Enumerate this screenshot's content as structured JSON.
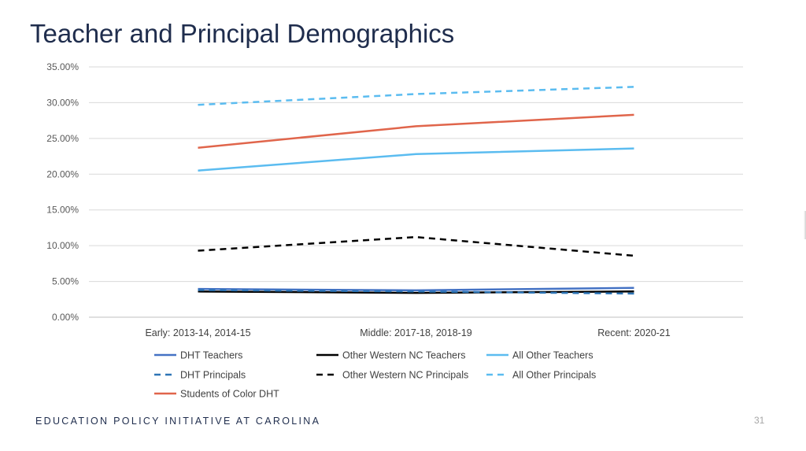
{
  "slide": {
    "title": "Teacher and Principal Demographics",
    "footer": "EDUCATION POLICY INITIATIVE AT CAROLINA",
    "page_number": "31"
  },
  "chart_data": {
    "type": "line",
    "title": "",
    "xlabel": "",
    "ylabel": "",
    "categories": [
      "Early: 2013-14, 2014-15",
      "Middle: 2017-18, 2018-19",
      "Recent: 2020-21"
    ],
    "ylim": [
      0,
      0.35
    ],
    "yticks": [
      0,
      0.05,
      0.1,
      0.15,
      0.2,
      0.25,
      0.3,
      0.35
    ],
    "ytick_labels": [
      "0.00%",
      "5.00%",
      "10.00%",
      "15.00%",
      "20.00%",
      "25.00%",
      "30.00%",
      "35.00%"
    ],
    "grid": true,
    "legend_position": "bottom",
    "series": [
      {
        "name": "DHT Teachers",
        "values": [
          0.0395,
          0.0375,
          0.041
        ],
        "color": "#4472c4",
        "dash": "solid"
      },
      {
        "name": "Other Western NC Teachers",
        "values": [
          0.036,
          0.034,
          0.036
        ],
        "color": "#000000",
        "dash": "solid"
      },
      {
        "name": "All Other Teachers",
        "values": [
          0.205,
          0.228,
          0.236
        ],
        "color": "#5bbcf0",
        "dash": "solid"
      },
      {
        "name": "DHT Principals",
        "values": [
          0.038,
          0.036,
          0.033
        ],
        "color": "#2e75b6",
        "dash": "dashed"
      },
      {
        "name": "Other Western NC Principals",
        "values": [
          0.093,
          0.112,
          0.086
        ],
        "color": "#000000",
        "dash": "dashed"
      },
      {
        "name": "All Other Principals",
        "values": [
          0.297,
          0.312,
          0.322
        ],
        "color": "#5bbcf0",
        "dash": "dashed"
      },
      {
        "name": "Students of Color DHT",
        "values": [
          0.237,
          0.267,
          0.283
        ],
        "color": "#e0654b",
        "dash": "solid"
      }
    ]
  }
}
